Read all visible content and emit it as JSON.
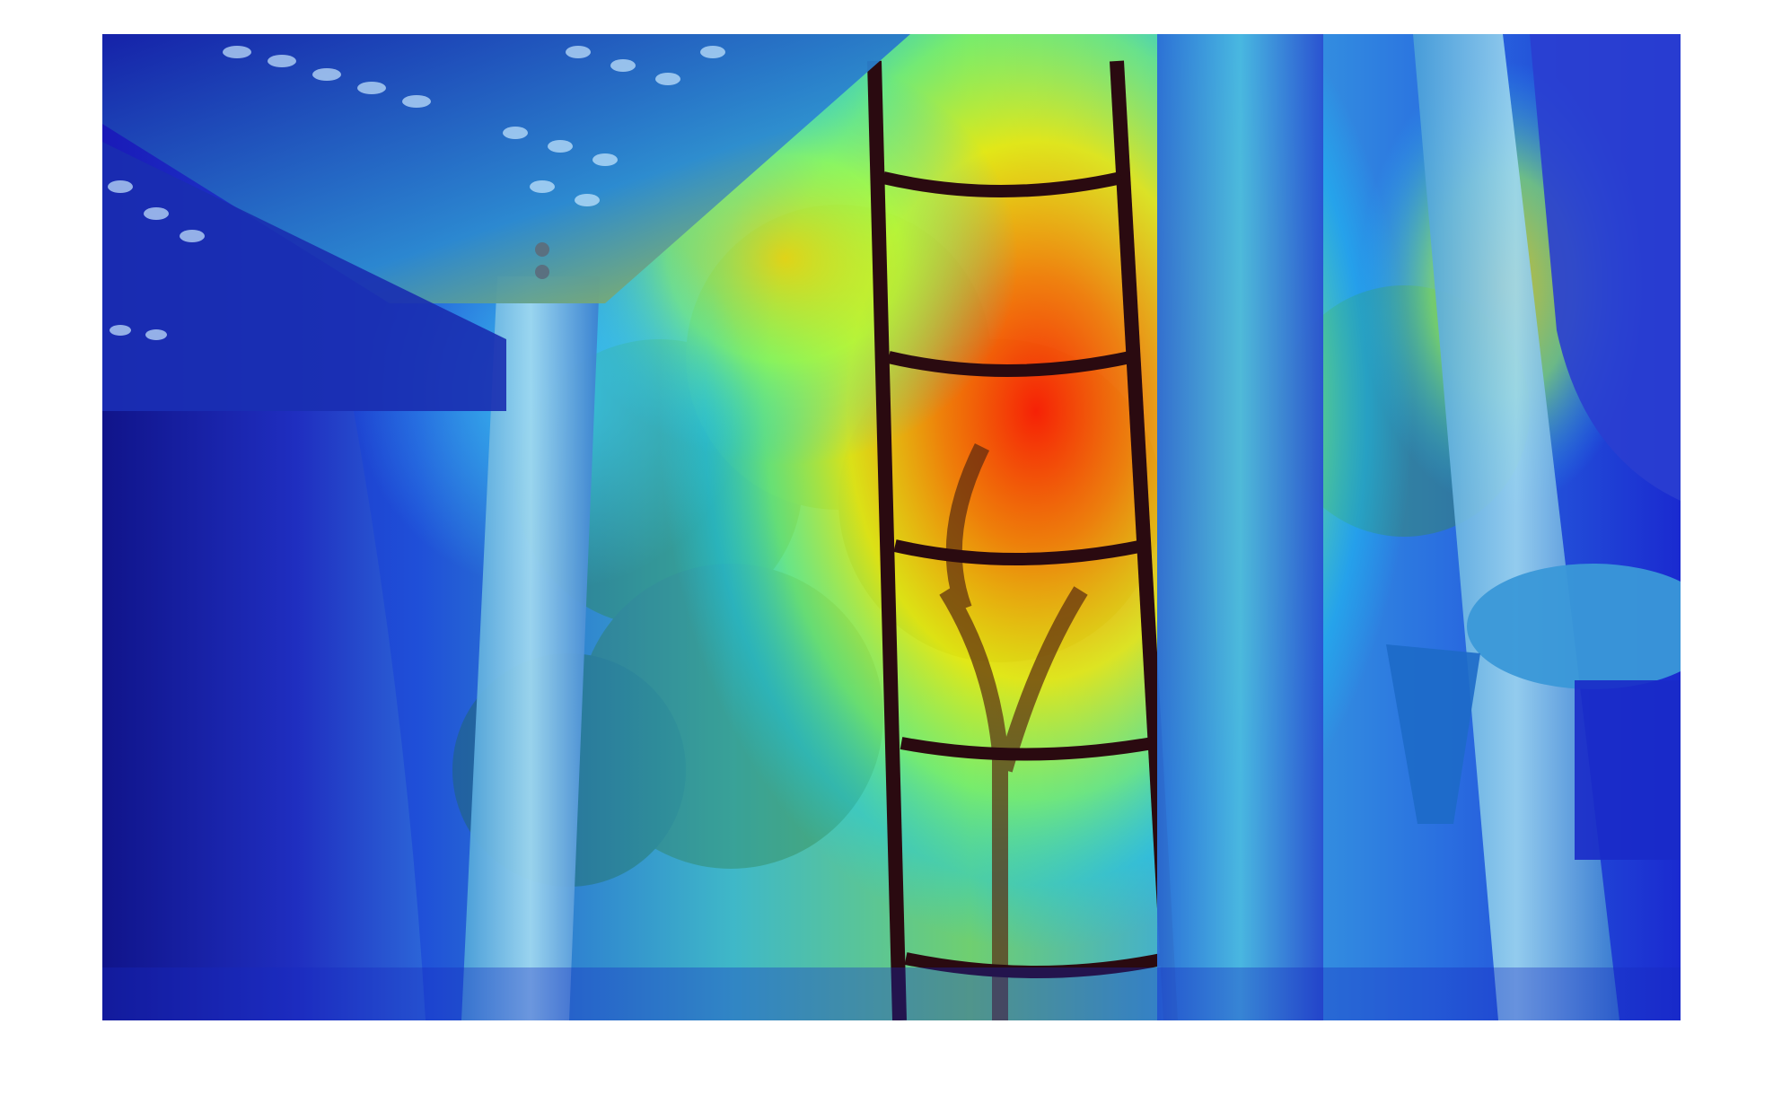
{
  "figure": {
    "description_kind": "attention heatmap overlay",
    "colormap": "jet",
    "colormap_stops": [
      "#00007f",
      "#0000ff",
      "#00bfff",
      "#7fff7f",
      "#ffff00",
      "#ff7f00",
      "#ff0000"
    ],
    "background_color": "#ffffff"
  },
  "scene_icons": {
    "ladder": "ladder-icon",
    "tree": "tree-icon",
    "pole": "pole-icon",
    "platform": "perforated-platform-icon",
    "slide": "slide-icon"
  }
}
